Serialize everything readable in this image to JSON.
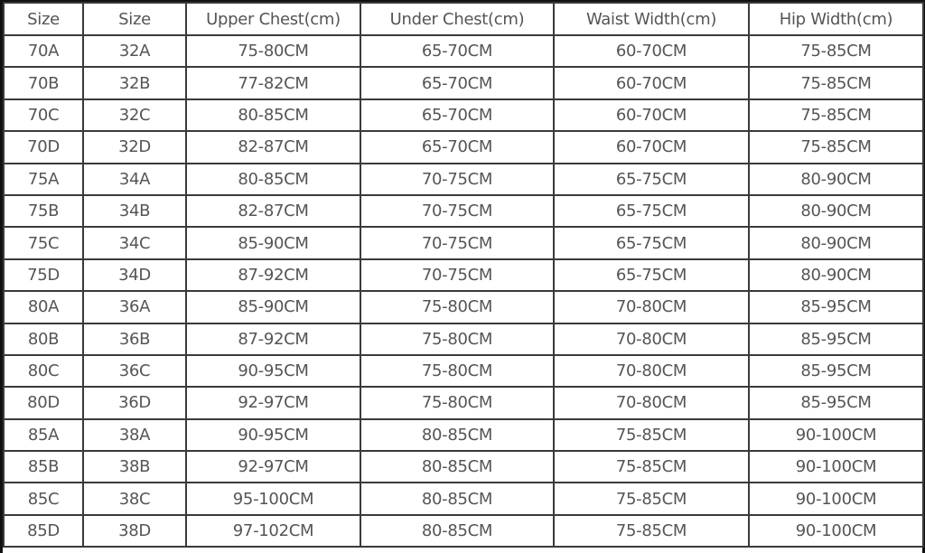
{
  "headers": [
    "Size",
    "Size",
    "Upper Chest(cm)",
    "Under Chest(cm)",
    "Waist Width(cm)",
    "Hip Width(cm)"
  ],
  "rows": [
    [
      "70A",
      "32A",
      "75-80CM",
      "65-70CM",
      "60-70CM",
      "75-85CM"
    ],
    [
      "70B",
      "32B",
      "77-82CM",
      "65-70CM",
      "60-70CM",
      "75-85CM"
    ],
    [
      "70C",
      "32C",
      "80-85CM",
      "65-70CM",
      "60-70CM",
      "75-85CM"
    ],
    [
      "70D",
      "32D",
      "82-87CM",
      "65-70CM",
      "60-70CM",
      "75-85CM"
    ],
    [
      "75A",
      "34A",
      "80-85CM",
      "70-75CM",
      "65-75CM",
      "80-90CM"
    ],
    [
      "75B",
      "34B",
      "82-87CM",
      "70-75CM",
      "65-75CM",
      "80-90CM"
    ],
    [
      "75C",
      "34C",
      "85-90CM",
      "70-75CM",
      "65-75CM",
      "80-90CM"
    ],
    [
      "75D",
      "34D",
      "87-92CM",
      "70-75CM",
      "65-75CM",
      "80-90CM"
    ],
    [
      "80A",
      "36A",
      "85-90CM",
      "75-80CM",
      "70-80CM",
      "85-95CM"
    ],
    [
      "80B",
      "36B",
      "87-92CM",
      "75-80CM",
      "70-80CM",
      "85-95CM"
    ],
    [
      "80C",
      "36C",
      "90-95CM",
      "75-80CM",
      "70-80CM",
      "85-95CM"
    ],
    [
      "80D",
      "36D",
      "92-97CM",
      "75-80CM",
      "70-80CM",
      "85-95CM"
    ],
    [
      "85A",
      "38A",
      "90-95CM",
      "80-85CM",
      "75-85CM",
      "90-100CM"
    ],
    [
      "85B",
      "38B",
      "92-97CM",
      "80-85CM",
      "75-85CM",
      "90-100CM"
    ],
    [
      "85C",
      "38C",
      "95-100CM",
      "80-85CM",
      "75-85CM",
      "90-100CM"
    ],
    [
      "85D",
      "38D",
      "97-102CM",
      "80-85CM",
      "75-85CM",
      "90-100CM"
    ]
  ]
}
